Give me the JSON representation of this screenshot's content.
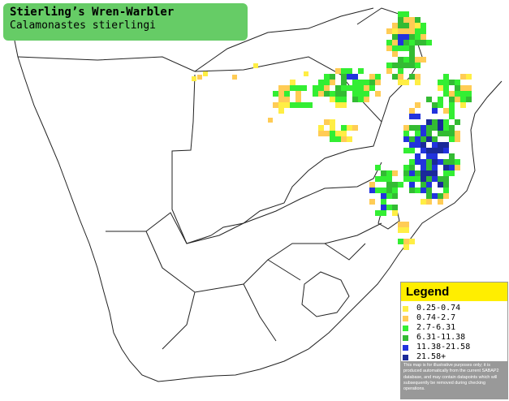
{
  "title": {
    "common_name": "Stierling’s Wren-Warbler",
    "scientific_name": "Calamonastes stierlingi"
  },
  "legend": {
    "heading": "Legend",
    "items": [
      {
        "label": "0.25-0.74",
        "color": "#ffee44"
      },
      {
        "label": "0.74-2.7",
        "color": "#ffcc55"
      },
      {
        "label": "2.7-6.31",
        "color": "#33ee33"
      },
      {
        "label": "6.31-11.38",
        "color": "#33bb33"
      },
      {
        "label": "11.38-21.58",
        "color": "#2233dd"
      },
      {
        "label": "21.58+",
        "color": "#1a2a99"
      }
    ],
    "disclaimer": "This map is for illustrative purposes only; it is produced automatically from the current SABAP2 database, and may contain datapoints which will subsequently be removed during checking operations."
  },
  "map_style": {
    "land_color": "#ffffff",
    "border_color": "#222222"
  }
}
